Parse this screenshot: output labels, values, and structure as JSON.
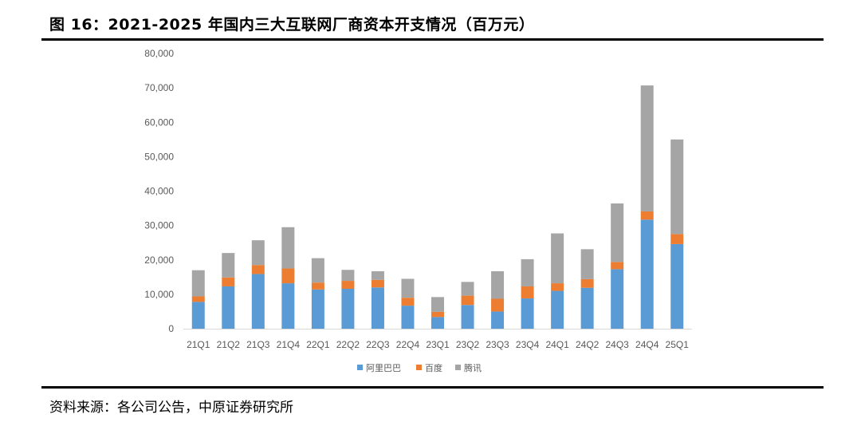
{
  "title": "图 16：2021-2025 年国内三大互联网厂商资本开支情况（百万元）",
  "source": "资料来源：各公司公告，中原证券研究所",
  "chart_data": {
    "type": "bar",
    "stacked": true,
    "title": "图 16：2021-2025 年国内三大互联网厂商资本开支情况（百万元）",
    "xlabel": "",
    "ylabel": "",
    "ylim": [
      0,
      80000
    ],
    "yticks": [
      0,
      10000,
      20000,
      30000,
      40000,
      50000,
      60000,
      70000,
      80000
    ],
    "ytick_labels": [
      "0",
      "10,000",
      "20,000",
      "30,000",
      "40,000",
      "50,000",
      "60,000",
      "70,000",
      "80,000"
    ],
    "grid": false,
    "legend_position": "bottom",
    "categories": [
      "21Q1",
      "21Q2",
      "21Q3",
      "21Q4",
      "22Q1",
      "22Q2",
      "22Q3",
      "22Q4",
      "23Q1",
      "23Q2",
      "23Q3",
      "23Q4",
      "24Q1",
      "24Q2",
      "24Q3",
      "24Q4",
      "25Q1"
    ],
    "series": [
      {
        "name": "阿里巴巴",
        "color": "#5B9BD5",
        "values": [
          7800,
          12300,
          15900,
          13200,
          11400,
          11600,
          12000,
          6700,
          3400,
          6900,
          5000,
          8800,
          11000,
          11900,
          17300,
          31700,
          24600
        ]
      },
      {
        "name": "百度",
        "color": "#ED7D31",
        "values": [
          1600,
          2600,
          2600,
          4300,
          2000,
          2300,
          2200,
          2300,
          1500,
          2700,
          3700,
          3500,
          2200,
          2500,
          2100,
          2400,
          2900
        ]
      },
      {
        "name": "腾讯",
        "color": "#A5A5A5",
        "values": [
          7600,
          7100,
          7200,
          12000,
          7100,
          3200,
          2500,
          5500,
          4300,
          4000,
          8000,
          7900,
          14500,
          8700,
          17000,
          36600,
          27500
        ]
      }
    ]
  }
}
